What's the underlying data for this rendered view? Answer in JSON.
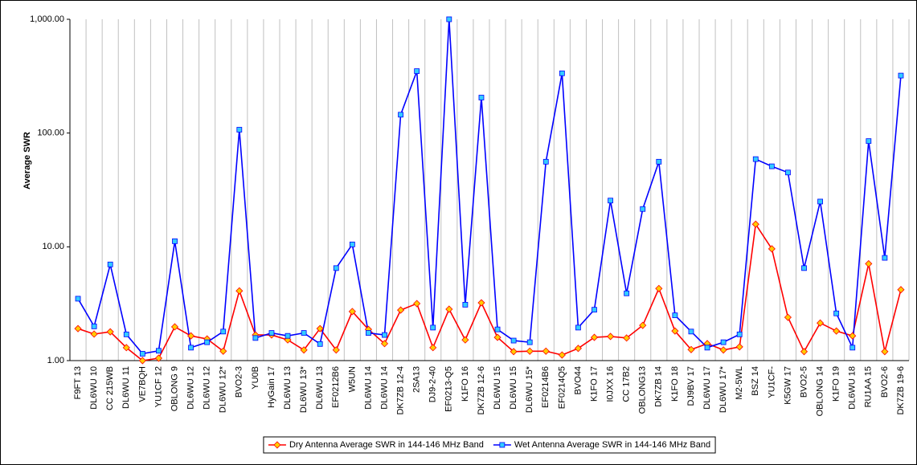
{
  "chart_data": {
    "type": "line",
    "y_label": "Average SWR",
    "y_log_scale": true,
    "ylim": [
      1,
      1000
    ],
    "yticks": [
      {
        "value": 1,
        "label": "1.00"
      },
      {
        "value": 10,
        "label": "10.00"
      },
      {
        "value": 100,
        "label": "100.00"
      },
      {
        "value": 1000,
        "label": "1,000.00"
      }
    ],
    "x_grid": true,
    "legend_position": "bottom",
    "categories": [
      "F9FT 13",
      "DL6WU 10",
      "CC 215WB",
      "DL6WU 11",
      "VE7BQH",
      "YU1CF 12",
      "OBLONG 9",
      "DL6WU 12",
      "DL6WU 12",
      "DL6WU 12*",
      "BVO2-3",
      "YU0B",
      "HyGain 17",
      "DL6WU 13",
      "DL6WU 13*",
      "DL6WU 13",
      "EF0212B6",
      "W5UN",
      "DL6WU 14",
      "DL6WU 14",
      "DK7ZB 12-4",
      "2SA13",
      "DJ9-2-40",
      "EF0213-Q5",
      "K1FO 16",
      "DK7ZB 12-6",
      "DL6WU 15",
      "DL6WU 15",
      "DL6WU 15*",
      "EF0214B6",
      "EF0214Q5",
      "BVO44",
      "K1FO 17",
      "I0JXX 16",
      "CC 17B2",
      "OBLONG13",
      "DK7ZB 14",
      "K1FO 18",
      "DJ9BV 17",
      "DL6WU 17",
      "DL6WU 17*",
      "M2-5WL",
      "BSZ 14",
      "YU1CF-",
      "K5GW 17",
      "BVO2-5",
      "OBLONG 14",
      "K1FO 19",
      "DL6WU 18",
      "RU1AA 15",
      "BVO2-6",
      "DK7ZB 19-6"
    ],
    "series": [
      {
        "name": "Dry Antenna Average SWR in 144-146 MHz Band",
        "color": "#ff0000",
        "marker": "diamond",
        "marker_color": "#ffcc00",
        "values": [
          1.91,
          1.71,
          1.79,
          1.3,
          1.0,
          1.05,
          1.98,
          1.65,
          1.55,
          1.21,
          4.1,
          1.68,
          1.68,
          1.52,
          1.24,
          1.91,
          1.24,
          2.7,
          1.88,
          1.41,
          2.78,
          3.17,
          1.3,
          2.83,
          1.52,
          3.22,
          1.6,
          1.2,
          1.21,
          1.21,
          1.12,
          1.28,
          1.6,
          1.63,
          1.58,
          2.04,
          4.3,
          1.82,
          1.25,
          1.41,
          1.24,
          1.32,
          15.8,
          9.6,
          2.4,
          1.2,
          2.14,
          1.82,
          1.65,
          7.1,
          1.2,
          4.2
        ]
      },
      {
        "name": "Wet Antenna Average SWR in 144-146 MHz Band",
        "color": "#0000ff",
        "marker": "square",
        "marker_color": "#33ccff",
        "values": [
          3.5,
          2.0,
          7.0,
          1.7,
          1.15,
          1.22,
          11.2,
          1.3,
          1.45,
          1.8,
          107,
          1.58,
          1.75,
          1.65,
          1.75,
          1.4,
          6.5,
          10.5,
          1.75,
          1.68,
          145,
          350,
          1.95,
          1000,
          3.1,
          205,
          1.88,
          1.5,
          1.45,
          56,
          335,
          1.95,
          2.8,
          25.5,
          3.9,
          21.5,
          56,
          2.5,
          1.8,
          1.3,
          1.45,
          1.7,
          59,
          51,
          45,
          6.5,
          25,
          2.6,
          1.3,
          85,
          8,
          320
        ]
      }
    ]
  }
}
